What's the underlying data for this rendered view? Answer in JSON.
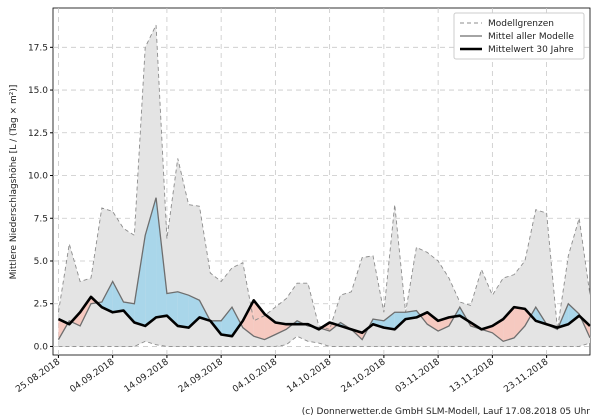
{
  "chart_data": {
    "type": "line",
    "y_label": "Mittlere Niederschlagshöhe [L / (Tag × m²)]",
    "footer": "(c) Donnerwetter.de GmbH SLM-Modell, Lauf 17.08.2018 05 Uhr",
    "x": [
      "25.08.2018",
      "27.08.2018",
      "29.08.2018",
      "31.08.2018",
      "02.09.2018",
      "04.09.2018",
      "06.09.2018",
      "08.09.2018",
      "10.09.2018",
      "12.09.2018",
      "14.09.2018",
      "16.09.2018",
      "18.09.2018",
      "20.09.2018",
      "22.09.2018",
      "24.09.2018",
      "26.09.2018",
      "28.09.2018",
      "30.09.2018",
      "02.10.2018",
      "04.10.2018",
      "06.10.2018",
      "08.10.2018",
      "10.10.2018",
      "12.10.2018",
      "14.10.2018",
      "16.10.2018",
      "18.10.2018",
      "20.10.2018",
      "22.10.2018",
      "24.10.2018",
      "26.10.2018",
      "28.10.2018",
      "30.10.2018",
      "01.11.2018",
      "03.11.2018",
      "05.11.2018",
      "07.11.2018",
      "09.11.2018",
      "11.11.2018",
      "13.11.2018",
      "15.11.2018",
      "17.11.2018",
      "19.11.2018",
      "21.11.2018",
      "23.11.2018",
      "25.11.2018",
      "27.11.2018",
      "29.11.2018",
      "01.12.2018"
    ],
    "xlim": [
      "24.08.2018",
      "01.12.2018"
    ],
    "xticks": [
      "25.08.2018",
      "04.09.2018",
      "14.09.2018",
      "24.09.2018",
      "04.10.2018",
      "14.10.2018",
      "24.10.2018",
      "03.11.2018",
      "13.11.2018",
      "23.11.2018"
    ],
    "ylim": [
      -0.5,
      19.8
    ],
    "yticks": [
      {
        "value": 0,
        "label": "0.0"
      },
      2.5,
      {
        "value": 5,
        "label": "5.0"
      },
      7.5,
      {
        "value": 10,
        "label": "10.0"
      },
      12.5,
      {
        "value": 15,
        "label": "15.0"
      },
      17.5
    ],
    "grid": true,
    "legend": "upper right",
    "above_color": "#a9d6ea",
    "below_color": "#f6c9c0",
    "series": [
      {
        "name": "Modellgrenzen",
        "color": "#8c8c8c",
        "fill": "#e4e4e4",
        "values": [
          2.0,
          6.0,
          3.8,
          4.0,
          8.1,
          7.9,
          6.9,
          6.5,
          17.5,
          18.8,
          6.3,
          11.0,
          8.3,
          8.2,
          4.3,
          3.8,
          4.6,
          4.9,
          1.5,
          1.8,
          2.3,
          2.8,
          3.7,
          3.7,
          1.2,
          1.0,
          3.0,
          3.2,
          5.2,
          5.3,
          2.0,
          8.3,
          2.0,
          5.8,
          5.5,
          5.0,
          4.0,
          2.6,
          2.4,
          4.5,
          3.0,
          4.0,
          4.2,
          5.0,
          8.0,
          7.8,
          1.0,
          5.3,
          7.5,
          3.0
        ],
        "lower": [
          0,
          0,
          0,
          0,
          0,
          0,
          0,
          0,
          0.3,
          0.1,
          0,
          0,
          0,
          0,
          0,
          0,
          0,
          0,
          0,
          0,
          0,
          0.1,
          0.6,
          0.3,
          0.2,
          0,
          0,
          0,
          0,
          0,
          0,
          0,
          0,
          0,
          0,
          0,
          0,
          0,
          0,
          0,
          0,
          0,
          0,
          0,
          0,
          0,
          0,
          0,
          0,
          0.2
        ]
      },
      {
        "name": "Mittel aller Modelle",
        "color": "#6e6e6e",
        "values": [
          0.4,
          1.5,
          1.2,
          2.5,
          2.6,
          3.8,
          2.6,
          2.5,
          6.5,
          8.7,
          3.1,
          3.2,
          3.0,
          2.7,
          1.5,
          1.5,
          2.3,
          1.1,
          0.6,
          0.4,
          0.7,
          1.0,
          1.5,
          1.2,
          1.1,
          0.9,
          1.4,
          1.0,
          0.4,
          1.6,
          1.5,
          2.0,
          2.0,
          2.1,
          1.3,
          0.9,
          1.2,
          2.3,
          1.2,
          1.0,
          0.8,
          0.3,
          0.5,
          1.2,
          2.3,
          1.3,
          1.0,
          2.5,
          1.9,
          0.5
        ]
      },
      {
        "name": "Mittelwert 30 Jahre",
        "color": "#000000",
        "values": [
          1.6,
          1.3,
          2.0,
          2.9,
          2.3,
          2.0,
          2.1,
          1.4,
          1.2,
          1.7,
          1.8,
          1.2,
          1.1,
          1.7,
          1.5,
          0.7,
          0.6,
          1.5,
          2.7,
          1.9,
          1.4,
          1.3,
          1.3,
          1.3,
          1.0,
          1.4,
          1.2,
          1.0,
          0.8,
          1.3,
          1.1,
          1.0,
          1.6,
          1.7,
          2.0,
          1.5,
          1.7,
          1.8,
          1.4,
          1.0,
          1.2,
          1.6,
          2.3,
          2.2,
          1.5,
          1.3,
          1.1,
          1.3,
          1.8,
          1.2
        ]
      }
    ]
  }
}
